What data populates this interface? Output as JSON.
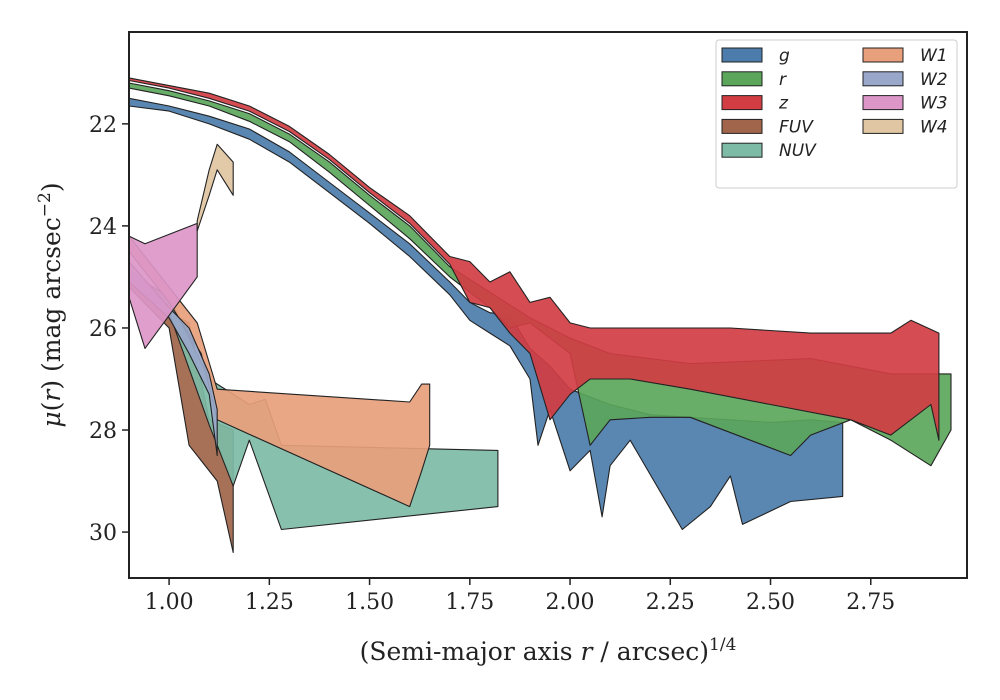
{
  "chart_data": {
    "type": "area",
    "title": "",
    "xlabel": "(Semi-major axis r / arcsec)^1/4",
    "ylabel": "μ(r) (mag arcsec^−2)",
    "xlim": [
      0.9,
      2.99
    ],
    "ylim": [
      30.9,
      20.2
    ],
    "y_inverted": true,
    "grid": false,
    "legend_placement": "top-right",
    "x_ticks": [
      "1.00",
      "1.25",
      "1.50",
      "1.75",
      "2.00",
      "2.25",
      "2.50",
      "2.75"
    ],
    "y_ticks": [
      "22",
      "24",
      "26",
      "28",
      "30"
    ],
    "series": [
      {
        "name": "g",
        "color": "#4c7cab",
        "upper": [
          [
            0.9,
            21.5
          ],
          [
            1.0,
            21.65
          ],
          [
            1.1,
            21.85
          ],
          [
            1.2,
            22.1
          ],
          [
            1.3,
            22.55
          ],
          [
            1.4,
            23.15
          ],
          [
            1.5,
            23.75
          ],
          [
            1.6,
            24.35
          ],
          [
            1.7,
            25.1
          ],
          [
            1.75,
            25.5
          ],
          [
            1.8,
            25.7
          ],
          [
            1.85,
            25.75
          ],
          [
            1.9,
            26.4
          ],
          [
            1.95,
            26.75
          ],
          [
            2.0,
            27.2
          ],
          [
            2.05,
            27.35
          ],
          [
            2.1,
            27.5
          ],
          [
            2.2,
            27.7
          ],
          [
            2.3,
            27.75
          ],
          [
            2.4,
            27.8
          ],
          [
            2.5,
            27.85
          ],
          [
            2.6,
            27.8
          ],
          [
            2.68,
            27.85
          ]
        ],
        "lower": [
          [
            0.9,
            21.65
          ],
          [
            1.0,
            21.75
          ],
          [
            1.1,
            22.0
          ],
          [
            1.2,
            22.3
          ],
          [
            1.3,
            22.75
          ],
          [
            1.4,
            23.35
          ],
          [
            1.5,
            23.95
          ],
          [
            1.6,
            24.6
          ],
          [
            1.7,
            25.35
          ],
          [
            1.75,
            25.85
          ],
          [
            1.8,
            26.1
          ],
          [
            1.85,
            26.35
          ],
          [
            1.9,
            27.0
          ],
          [
            1.92,
            28.3
          ],
          [
            1.95,
            27.6
          ],
          [
            2.0,
            28.8
          ],
          [
            2.05,
            28.4
          ],
          [
            2.08,
            29.7
          ],
          [
            2.1,
            28.7
          ],
          [
            2.15,
            28.2
          ],
          [
            2.28,
            29.95
          ],
          [
            2.35,
            29.5
          ],
          [
            2.4,
            28.9
          ],
          [
            2.43,
            29.85
          ],
          [
            2.55,
            29.4
          ],
          [
            2.68,
            29.3
          ]
        ]
      },
      {
        "name": "r",
        "color": "#5ba65b",
        "upper": [
          [
            0.9,
            21.2
          ],
          [
            1.0,
            21.35
          ],
          [
            1.1,
            21.55
          ],
          [
            1.2,
            21.8
          ],
          [
            1.3,
            22.2
          ],
          [
            1.4,
            22.75
          ],
          [
            1.5,
            23.4
          ],
          [
            1.6,
            24.0
          ],
          [
            1.7,
            24.8
          ],
          [
            1.8,
            25.3
          ],
          [
            1.9,
            25.8
          ],
          [
            2.0,
            26.2
          ],
          [
            2.1,
            26.5
          ],
          [
            2.3,
            26.7
          ],
          [
            2.6,
            26.6
          ],
          [
            2.8,
            26.9
          ],
          [
            2.95,
            26.9
          ]
        ],
        "lower": [
          [
            0.9,
            21.3
          ],
          [
            1.0,
            21.45
          ],
          [
            1.1,
            21.65
          ],
          [
            1.2,
            21.95
          ],
          [
            1.3,
            22.35
          ],
          [
            1.4,
            22.95
          ],
          [
            1.5,
            23.6
          ],
          [
            1.6,
            24.25
          ],
          [
            1.7,
            25.0
          ],
          [
            1.8,
            25.6
          ],
          [
            1.85,
            26.0
          ],
          [
            1.9,
            25.9
          ],
          [
            2.0,
            26.5
          ],
          [
            2.05,
            28.3
          ],
          [
            2.1,
            27.8
          ],
          [
            2.2,
            27.75
          ],
          [
            2.3,
            27.75
          ],
          [
            2.55,
            28.5
          ],
          [
            2.6,
            28.1
          ],
          [
            2.7,
            27.8
          ],
          [
            2.8,
            28.2
          ],
          [
            2.9,
            28.7
          ],
          [
            2.95,
            28.0
          ]
        ]
      },
      {
        "name": "z",
        "color": "#d13d43",
        "upper": [
          [
            0.9,
            21.1
          ],
          [
            1.0,
            21.25
          ],
          [
            1.1,
            21.4
          ],
          [
            1.2,
            21.65
          ],
          [
            1.3,
            22.05
          ],
          [
            1.4,
            22.6
          ],
          [
            1.5,
            23.25
          ],
          [
            1.6,
            23.8
          ],
          [
            1.7,
            24.6
          ],
          [
            1.75,
            24.7
          ],
          [
            1.8,
            25.1
          ],
          [
            1.85,
            24.9
          ],
          [
            1.9,
            25.5
          ],
          [
            1.95,
            25.4
          ],
          [
            2.0,
            25.9
          ],
          [
            2.05,
            26.0
          ],
          [
            2.2,
            26.0
          ],
          [
            2.4,
            26.0
          ],
          [
            2.6,
            26.1
          ],
          [
            2.8,
            26.1
          ],
          [
            2.85,
            25.85
          ],
          [
            2.92,
            26.1
          ]
        ],
        "lower": [
          [
            0.9,
            21.15
          ],
          [
            1.0,
            21.3
          ],
          [
            1.1,
            21.5
          ],
          [
            1.2,
            21.75
          ],
          [
            1.3,
            22.15
          ],
          [
            1.4,
            22.7
          ],
          [
            1.5,
            23.35
          ],
          [
            1.6,
            23.95
          ],
          [
            1.7,
            24.75
          ],
          [
            1.75,
            25.5
          ],
          [
            1.8,
            25.6
          ],
          [
            1.85,
            26.1
          ],
          [
            1.9,
            26.5
          ],
          [
            1.95,
            27.8
          ],
          [
            2.0,
            27.3
          ],
          [
            2.05,
            27.0
          ],
          [
            2.15,
            27.0
          ],
          [
            2.3,
            27.2
          ],
          [
            2.5,
            27.5
          ],
          [
            2.7,
            27.8
          ],
          [
            2.8,
            28.1
          ],
          [
            2.9,
            27.5
          ],
          [
            2.92,
            28.2
          ]
        ]
      },
      {
        "name": "FUV",
        "color": "#a0654a",
        "upper": [
          [
            0.9,
            25.0
          ],
          [
            0.95,
            25.3
          ],
          [
            1.0,
            25.7
          ],
          [
            1.05,
            25.9
          ],
          [
            1.1,
            27.8
          ],
          [
            1.16,
            28.0
          ]
        ],
        "lower": [
          [
            0.9,
            25.2
          ],
          [
            0.95,
            25.6
          ],
          [
            1.0,
            26.0
          ],
          [
            1.05,
            28.3
          ],
          [
            1.08,
            28.6
          ],
          [
            1.12,
            29.0
          ],
          [
            1.16,
            30.4
          ]
        ]
      },
      {
        "name": "NUV",
        "color": "#7dbba6",
        "upper": [
          [
            0.9,
            24.9
          ],
          [
            1.0,
            25.4
          ],
          [
            1.1,
            27.0
          ],
          [
            1.2,
            27.5
          ],
          [
            1.24,
            27.4
          ],
          [
            1.28,
            28.3
          ],
          [
            1.82,
            28.4
          ]
        ],
        "lower": [
          [
            0.9,
            25.1
          ],
          [
            1.0,
            25.7
          ],
          [
            1.1,
            27.9
          ],
          [
            1.16,
            29.1
          ],
          [
            1.2,
            28.2
          ],
          [
            1.28,
            29.95
          ],
          [
            1.82,
            29.5
          ]
        ]
      },
      {
        "name": "W1",
        "color": "#e89f7c",
        "upper": [
          [
            0.9,
            24.2
          ],
          [
            1.0,
            25.2
          ],
          [
            1.07,
            25.9
          ],
          [
            1.12,
            27.2
          ],
          [
            1.6,
            27.45
          ],
          [
            1.63,
            27.1
          ],
          [
            1.65,
            27.1
          ]
        ],
        "lower": [
          [
            0.9,
            24.5
          ],
          [
            1.0,
            25.5
          ],
          [
            1.08,
            26.5
          ],
          [
            1.12,
            27.8
          ],
          [
            1.6,
            29.5
          ],
          [
            1.63,
            28.8
          ],
          [
            1.65,
            28.3
          ]
        ]
      },
      {
        "name": "W2",
        "color": "#99a8ca",
        "upper": [
          [
            0.9,
            24.7
          ],
          [
            1.0,
            25.6
          ],
          [
            1.05,
            26.0
          ],
          [
            1.1,
            26.9
          ],
          [
            1.12,
            27.6
          ]
        ],
        "lower": [
          [
            0.9,
            25.1
          ],
          [
            1.0,
            25.8
          ],
          [
            1.05,
            26.5
          ],
          [
            1.1,
            27.3
          ],
          [
            1.12,
            28.5
          ]
        ]
      },
      {
        "name": "W3",
        "color": "#dc96c8",
        "upper": [
          [
            0.9,
            24.2
          ],
          [
            0.94,
            24.35
          ],
          [
            1.07,
            23.95
          ]
        ],
        "lower": [
          [
            0.9,
            25.4
          ],
          [
            0.94,
            26.4
          ],
          [
            1.07,
            25.0
          ]
        ]
      },
      {
        "name": "W4",
        "color": "#e0c6a2",
        "upper": [
          [
            1.07,
            23.9
          ],
          [
            1.1,
            22.9
          ],
          [
            1.12,
            22.4
          ],
          [
            1.16,
            22.75
          ]
        ],
        "lower": [
          [
            1.07,
            24.1
          ],
          [
            1.1,
            23.4
          ],
          [
            1.12,
            22.9
          ],
          [
            1.16,
            23.4
          ]
        ]
      }
    ]
  }
}
